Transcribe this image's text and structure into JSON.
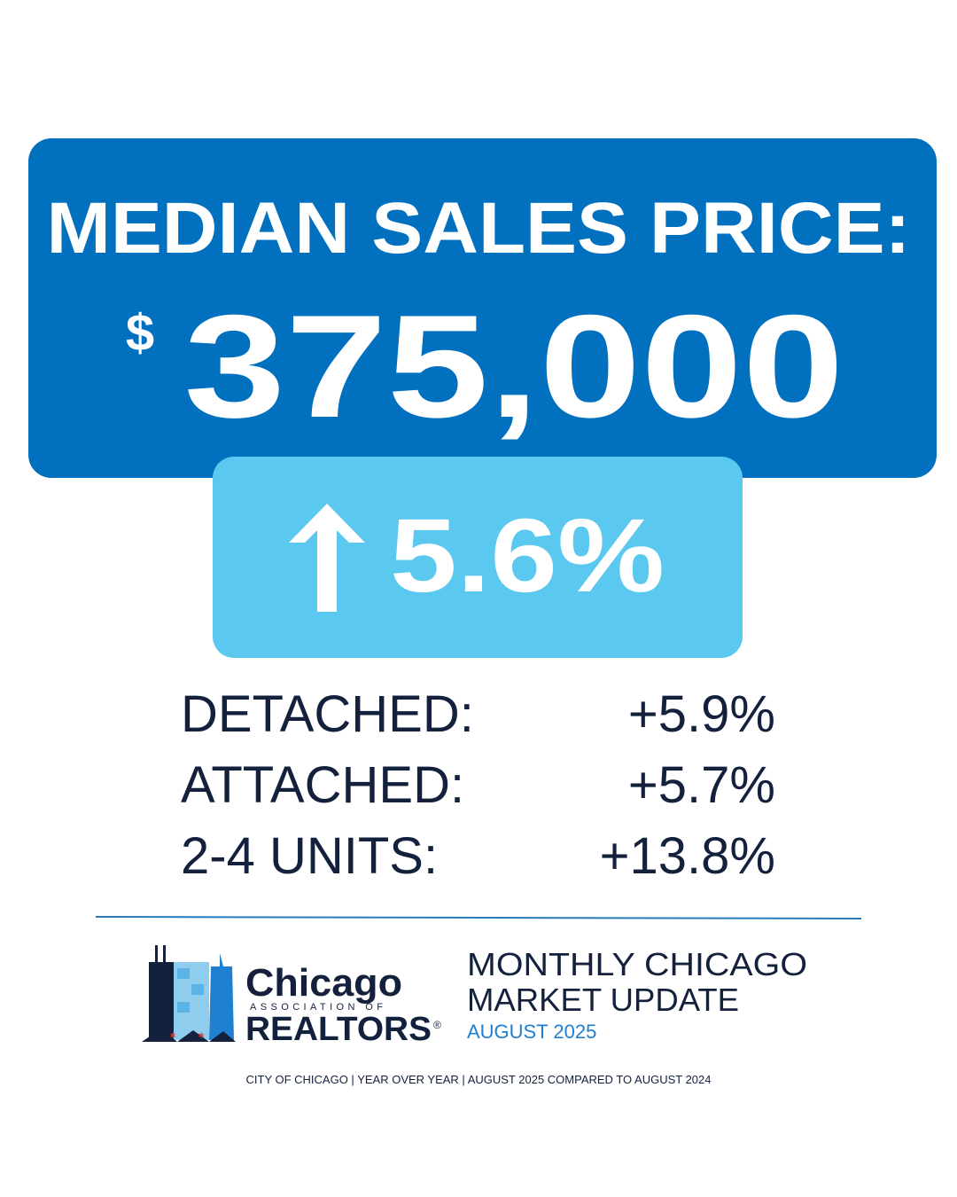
{
  "headline": {
    "title": "MEDIAN SALES PRICE:",
    "currency": "$",
    "value": "375,000"
  },
  "change": {
    "value": "5.6%"
  },
  "breakdown": [
    {
      "label": "DETACHED:",
      "value": "+5.9%"
    },
    {
      "label": "ATTACHED:",
      "value": "+5.7%"
    },
    {
      "label": "2-4 UNITS:",
      "value": "+13.8%"
    }
  ],
  "logo": {
    "name": "Chicago",
    "sub": "ASSOCIATION OF",
    "org": "REALTORS",
    "mark": "®"
  },
  "report": {
    "line1": "MONTHLY CHICAGO",
    "line2": "MARKET UPDATE",
    "date": "AUGUST 2025"
  },
  "footnote": "CITY OF CHICAGO | YEAR OVER YEAR | AUGUST 2025 COMPARED TO AUGUST 2024"
}
